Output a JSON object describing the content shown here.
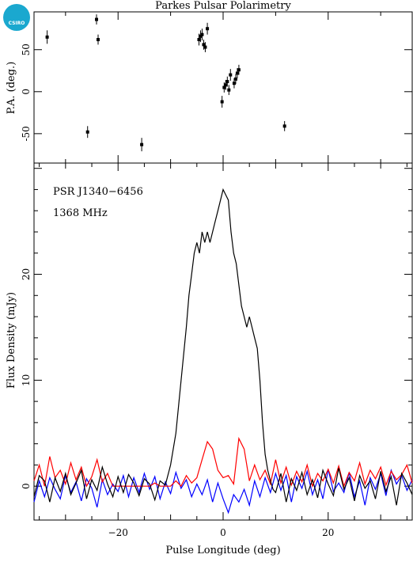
{
  "logo": {
    "text": "CSIRO",
    "color": "#1aa8cf"
  },
  "chart_data": [
    {
      "type": "scatter",
      "title": "Parkes Pulsar Polarimetry",
      "ylabel": "P.A. (deg.)",
      "xlim": [
        -36,
        36
      ],
      "ylim": [
        -85,
        95
      ],
      "yticks": [
        -50,
        0,
        50
      ],
      "points": [
        {
          "x": -33.5,
          "y": 65,
          "err": 8
        },
        {
          "x": -25.8,
          "y": -48,
          "err": 7
        },
        {
          "x": -24.1,
          "y": 86,
          "err": 6
        },
        {
          "x": -23.8,
          "y": 62,
          "err": 6
        },
        {
          "x": -15.5,
          "y": -63,
          "err": 8
        },
        {
          "x": -4.6,
          "y": 62,
          "err": 7
        },
        {
          "x": -4.3,
          "y": 66,
          "err": 7
        },
        {
          "x": -4.0,
          "y": 68,
          "err": 7
        },
        {
          "x": -3.7,
          "y": 56,
          "err": 6
        },
        {
          "x": -3.4,
          "y": 53,
          "err": 6
        },
        {
          "x": -3.0,
          "y": 75,
          "err": 7
        },
        {
          "x": -0.2,
          "y": -12,
          "err": 7
        },
        {
          "x": 0.2,
          "y": 5,
          "err": 6
        },
        {
          "x": 0.5,
          "y": 8,
          "err": 6
        },
        {
          "x": 0.8,
          "y": 12,
          "err": 6
        },
        {
          "x": 1.1,
          "y": 2,
          "err": 6
        },
        {
          "x": 1.4,
          "y": 20,
          "err": 7
        },
        {
          "x": 2.1,
          "y": 10,
          "err": 6
        },
        {
          "x": 2.4,
          "y": 15,
          "err": 6
        },
        {
          "x": 2.7,
          "y": 22,
          "err": 6
        },
        {
          "x": 3.0,
          "y": 26,
          "err": 6
        },
        {
          "x": 11.7,
          "y": -41,
          "err": 6
        }
      ]
    },
    {
      "type": "line",
      "xlabel": "Pulse Longitude (deg)",
      "ylabel": "Flux Density (mJy)",
      "xlim": [
        -36,
        36
      ],
      "ylim": [
        -3.2,
        30.5
      ],
      "xticks": [
        -20,
        0,
        20
      ],
      "yticks": [
        0,
        10,
        20
      ],
      "annotations": [
        "PSR J1340−6456",
        "1368 MHz"
      ],
      "series": [
        {
          "color": "#000000",
          "x": [
            -36,
            -35,
            -34,
            -33,
            -32,
            -31,
            -30,
            -29,
            -28,
            -27,
            -26,
            -25,
            -24,
            -23,
            -22,
            -21,
            -20,
            -19,
            -18,
            -17,
            -16,
            -15,
            -14,
            -13,
            -12,
            -11,
            -10,
            -9,
            -8,
            -7,
            -6.5,
            -6,
            -5.5,
            -5,
            -4.5,
            -4,
            -3.5,
            -3,
            -2.5,
            -2,
            -1.5,
            -1,
            -0.5,
            0,
            0.5,
            1,
            1.5,
            2,
            2.5,
            3,
            3.5,
            4,
            4.5,
            5,
            5.5,
            6,
            6.5,
            7,
            7.5,
            8,
            8.5,
            9,
            9.5,
            10,
            11,
            12,
            13,
            14,
            15,
            16,
            17,
            18,
            19,
            20,
            21,
            22,
            23,
            24,
            25,
            26,
            27,
            28,
            29,
            30,
            31,
            32,
            33,
            34,
            35,
            36
          ],
          "y": [
            -1,
            1,
            0.5,
            -1.5,
            0.8,
            -0.5,
            1.2,
            -0.8,
            0.3,
            1.5,
            -1.2,
            0.6,
            -0.4,
            1.8,
            0.2,
            -1,
            0.9,
            -0.6,
            1.1,
            0.3,
            -0.9,
            0.7,
            0.2,
            -1.3,
            0.5,
            0.1,
            2,
            5,
            10,
            15,
            18,
            20,
            22,
            23,
            22,
            24,
            23,
            24,
            23,
            24,
            25,
            26,
            27,
            28,
            27.5,
            27,
            24,
            22,
            21,
            19,
            17,
            16,
            15,
            16,
            15,
            14,
            13,
            10,
            6,
            3,
            1.5,
            0.5,
            -0.3,
            -0.6,
            1.2,
            -1.5,
            0.7,
            -0.4,
            1.3,
            -0.8,
            0.6,
            -1.1,
            1.5,
            0.2,
            -0.9,
            1.7,
            -0.3,
            0.8,
            -1.4,
            1,
            -0.2,
            0.5,
            -1.2,
            1.4,
            -0.5,
            0.9,
            -1.8,
            1.2,
            0.3,
            -0.8
          ]
        },
        {
          "color": "#ff0000",
          "x": [
            -36,
            -35,
            -34,
            -33,
            -32,
            -31,
            -30,
            -29,
            -28,
            -27,
            -26,
            -25,
            -24,
            -23,
            -22,
            -21,
            -20,
            -19,
            -18,
            -17,
            -16,
            -15,
            -14,
            -13,
            -12,
            -11,
            -10,
            -9,
            -8,
            -7,
            -6,
            -5,
            -4,
            -3,
            -2,
            -1,
            0,
            1,
            2,
            3,
            4,
            5,
            6,
            7,
            8,
            9,
            10,
            11,
            12,
            13,
            14,
            15,
            16,
            17,
            18,
            19,
            20,
            21,
            22,
            23,
            24,
            25,
            26,
            27,
            28,
            29,
            30,
            31,
            32,
            33,
            34,
            35,
            36
          ],
          "y": [
            0.5,
            2,
            0,
            2.8,
            0.8,
            1.5,
            0.2,
            2.2,
            0.6,
            1.8,
            0,
            0.9,
            2.5,
            0.4,
            1.2,
            0,
            0,
            0,
            0,
            0,
            0,
            0,
            0,
            0.3,
            0,
            0,
            0,
            0.5,
            0,
            1,
            0.3,
            0.8,
            2.5,
            4.2,
            3.5,
            1.5,
            0.8,
            1,
            0.2,
            4.5,
            3.5,
            0.5,
            2,
            0.6,
            1.5,
            0.2,
            2.5,
            0.3,
            1.8,
            0.1,
            1.4,
            0.4,
            2,
            0,
            1.2,
            0.5,
            1.6,
            0.3,
            1.9,
            0,
            1.3,
            0.5,
            2.2,
            0.2,
            1.5,
            0.7,
            1.8,
            0.1,
            1.4,
            0.6,
            1.1,
            2,
            0.3
          ]
        },
        {
          "color": "#0000ff",
          "x": [
            -36,
            -35,
            -34,
            -33,
            -32,
            -31,
            -30,
            -29,
            -28,
            -27,
            -26,
            -25,
            -24,
            -23,
            -22,
            -21,
            -20,
            -19,
            -18,
            -17,
            -16,
            -15,
            -14,
            -13,
            -12,
            -11,
            -10,
            -9,
            -8,
            -7,
            -6,
            -5,
            -4,
            -3,
            -2,
            -1,
            0,
            1,
            2,
            3,
            4,
            5,
            6,
            7,
            8,
            9,
            10,
            11,
            12,
            13,
            14,
            15,
            16,
            17,
            18,
            19,
            20,
            21,
            22,
            23,
            24,
            25,
            26,
            27,
            28,
            29,
            30,
            31,
            32,
            33,
            34,
            35,
            36
          ],
          "y": [
            -1.5,
            0.5,
            -1,
            0.8,
            -0.3,
            -1.2,
            1,
            -0.6,
            0.4,
            -1.4,
            0.7,
            -0.2,
            -2,
            0.6,
            -0.8,
            0.2,
            -0.5,
            1,
            -1,
            0.8,
            -0.6,
            1.2,
            -0.3,
            0.9,
            -1.2,
            0.4,
            -0.7,
            1.3,
            -0.2,
            0.6,
            -1,
            0.2,
            -0.8,
            0.6,
            -1.5,
            0.3,
            -1.2,
            -2.5,
            -0.8,
            -1.5,
            -0.3,
            -1.8,
            0.5,
            -1,
            0.8,
            -0.6,
            1.2,
            -0.4,
            1,
            -1.5,
            0.9,
            -0.2,
            1.4,
            -0.8,
            0.6,
            -1.2,
            1.6,
            -0.5,
            0.3,
            -0.6,
            1.3,
            -1,
            0.5,
            -1.8,
            0.8,
            -0.3,
            1.2,
            -0.9,
            1.5,
            0.2,
            1,
            -0.4,
            0.6
          ]
        }
      ]
    }
  ]
}
